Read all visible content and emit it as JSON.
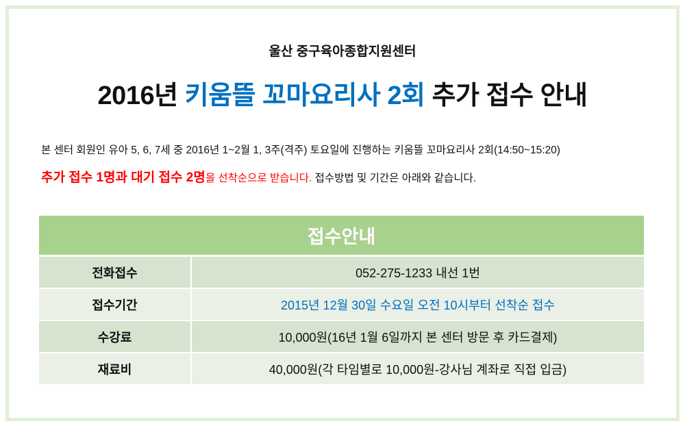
{
  "organization": "울산 중구육아종합지원센터",
  "title": {
    "part1": "2016년 ",
    "highlight": "키움뜰 꼬마요리사 2회",
    "part2": " 추가 접수 안내"
  },
  "intro_line": "본 센터 회원인 유아 5, 6, 7세 중 2016년 1~2월 1, 3주(격주) 토요일에 진행하는 키움뜰 꼬마요리사 2회(14:50~15:20)",
  "notice": {
    "emphasis": "추가 접수 1명과 대기 접수 2명",
    "red_rest": "을 선착순으로 받습니다.",
    "rest": " 접수방법 및 기간은 아래와 같습니다."
  },
  "table": {
    "header": "접수안내",
    "rows": [
      {
        "label": "전화접수",
        "value": "052-275-1233  내선 1번"
      },
      {
        "label": "접수기간",
        "value": "2015년 12월 30일 수요일 오전 10시부터 선착순 접수"
      },
      {
        "label": "수강료",
        "value": "10,000원(16년 1월 6일까지 본 센터 방문 후 카드결제)"
      },
      {
        "label": "재료비",
        "value": "40,000원(각 타임별로 10,000원-강사님 계좌로 직접 입금)"
      }
    ]
  },
  "colors": {
    "accent_blue": "#0070c0",
    "accent_red": "#ff0000",
    "header_green": "#a9d18e",
    "frame": "#e2efd9"
  }
}
